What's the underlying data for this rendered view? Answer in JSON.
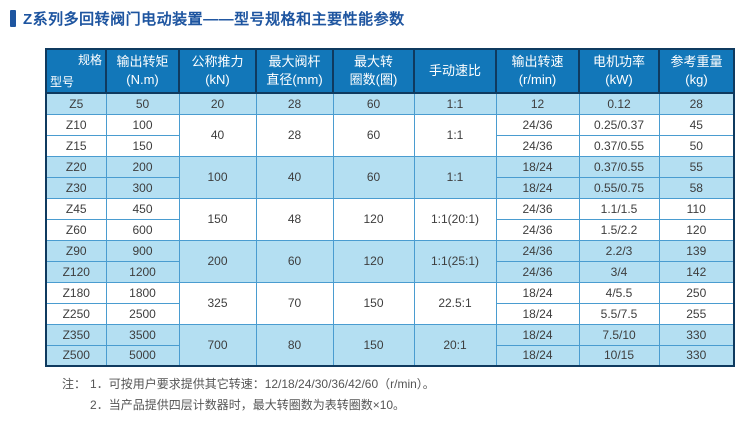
{
  "page_title": "Z系列多回转阀门电动装置——型号规格和主要性能参数",
  "colors": {
    "title_blue": "#1e55a0",
    "header_blue": "#1277b9",
    "row_light_blue": "#b4dff2",
    "grid_blue": "#4a9cd0",
    "outer_border_navy": "#0f3a5f"
  },
  "table": {
    "corner": {
      "top_right": "规格",
      "bottom_left": "型号"
    },
    "headers": [
      {
        "line1": "输出转矩",
        "line2": "(N.m)"
      },
      {
        "line1": "公称推力",
        "line2": "(kN)"
      },
      {
        "line1": "最大阀杆",
        "line2": "直径(mm)"
      },
      {
        "line1": "最大转",
        "line2": "圈数(圈)"
      },
      {
        "line1": "手动速比",
        "line2": ""
      },
      {
        "line1": "输出转速",
        "line2": "(r/min)"
      },
      {
        "line1": "电机功率",
        "line2": "(kW)"
      },
      {
        "line1": "参考重量",
        "line2": "(kg)"
      }
    ],
    "rows": [
      {
        "tone": "blue",
        "group_start": false,
        "cells": [
          {
            "v": "Z5"
          },
          {
            "v": "50"
          },
          {
            "v": "20"
          },
          {
            "v": "28"
          },
          {
            "v": "60"
          },
          {
            "v": "1:1"
          },
          {
            "v": "12"
          },
          {
            "v": "0.12"
          },
          {
            "v": "28"
          }
        ]
      },
      {
        "tone": "white",
        "group_start": true,
        "cells": [
          {
            "v": "Z10"
          },
          {
            "v": "100"
          },
          {
            "v": "40",
            "rs": 2
          },
          {
            "v": "28",
            "rs": 2
          },
          {
            "v": "60",
            "rs": 2
          },
          {
            "v": "1:1",
            "rs": 2
          },
          {
            "v": "24/36"
          },
          {
            "v": "0.25/0.37"
          },
          {
            "v": "45"
          }
        ]
      },
      {
        "tone": "white",
        "group_start": false,
        "cells": [
          {
            "v": "Z15"
          },
          {
            "v": "150"
          },
          {
            "v": "24/36"
          },
          {
            "v": "0.37/0.55"
          },
          {
            "v": "50"
          }
        ]
      },
      {
        "tone": "blue",
        "group_start": true,
        "cells": [
          {
            "v": "Z20"
          },
          {
            "v": "200"
          },
          {
            "v": "100",
            "rs": 2
          },
          {
            "v": "40",
            "rs": 2
          },
          {
            "v": "60",
            "rs": 2
          },
          {
            "v": "1:1",
            "rs": 2
          },
          {
            "v": "18/24"
          },
          {
            "v": "0.37/0.55"
          },
          {
            "v": "55"
          }
        ]
      },
      {
        "tone": "blue",
        "group_start": false,
        "cells": [
          {
            "v": "Z30"
          },
          {
            "v": "300"
          },
          {
            "v": "18/24"
          },
          {
            "v": "0.55/0.75"
          },
          {
            "v": "58"
          }
        ]
      },
      {
        "tone": "white",
        "group_start": true,
        "cells": [
          {
            "v": "Z45"
          },
          {
            "v": "450"
          },
          {
            "v": "150",
            "rs": 2
          },
          {
            "v": "48",
            "rs": 2
          },
          {
            "v": "120",
            "rs": 2
          },
          {
            "v": "1:1(20:1)",
            "rs": 2
          },
          {
            "v": "24/36"
          },
          {
            "v": "1.1/1.5"
          },
          {
            "v": "110"
          }
        ]
      },
      {
        "tone": "white",
        "group_start": false,
        "cells": [
          {
            "v": "Z60"
          },
          {
            "v": "600"
          },
          {
            "v": "24/36"
          },
          {
            "v": "1.5/2.2"
          },
          {
            "v": "120"
          }
        ]
      },
      {
        "tone": "blue",
        "group_start": true,
        "cells": [
          {
            "v": "Z90"
          },
          {
            "v": "900"
          },
          {
            "v": "200",
            "rs": 2
          },
          {
            "v": "60",
            "rs": 2
          },
          {
            "v": "120",
            "rs": 2
          },
          {
            "v": "1:1(25:1)",
            "rs": 2
          },
          {
            "v": "24/36"
          },
          {
            "v": "2.2/3"
          },
          {
            "v": "139"
          }
        ]
      },
      {
        "tone": "blue",
        "group_start": false,
        "cells": [
          {
            "v": "Z120"
          },
          {
            "v": "1200"
          },
          {
            "v": "24/36"
          },
          {
            "v": "3/4"
          },
          {
            "v": "142"
          }
        ]
      },
      {
        "tone": "white",
        "group_start": true,
        "cells": [
          {
            "v": "Z180"
          },
          {
            "v": "1800"
          },
          {
            "v": "325",
            "rs": 2
          },
          {
            "v": "70",
            "rs": 2
          },
          {
            "v": "150",
            "rs": 2
          },
          {
            "v": "22.5:1",
            "rs": 2
          },
          {
            "v": "18/24"
          },
          {
            "v": "4/5.5"
          },
          {
            "v": "250"
          }
        ]
      },
      {
        "tone": "white",
        "group_start": false,
        "cells": [
          {
            "v": "Z250"
          },
          {
            "v": "2500"
          },
          {
            "v": "18/24"
          },
          {
            "v": "5.5/7.5"
          },
          {
            "v": "255"
          }
        ]
      },
      {
        "tone": "blue",
        "group_start": true,
        "cells": [
          {
            "v": "Z350"
          },
          {
            "v": "3500"
          },
          {
            "v": "700",
            "rs": 2
          },
          {
            "v": "80",
            "rs": 2
          },
          {
            "v": "150",
            "rs": 2
          },
          {
            "v": "20:1",
            "rs": 2
          },
          {
            "v": "18/24"
          },
          {
            "v": "7.5/10"
          },
          {
            "v": "330"
          }
        ]
      },
      {
        "tone": "blue",
        "group_start": false,
        "cells": [
          {
            "v": "Z500"
          },
          {
            "v": "5000"
          },
          {
            "v": "18/24"
          },
          {
            "v": "10/15"
          },
          {
            "v": "330"
          }
        ]
      }
    ]
  },
  "notes": {
    "label": "注：",
    "line1": "1．可按用户要求提供其它转速：12/18/24/30/36/42/60（r/min）。",
    "line2": "2．当产品提供四层计数器时，最大转圈数为表转圈数×10。"
  }
}
